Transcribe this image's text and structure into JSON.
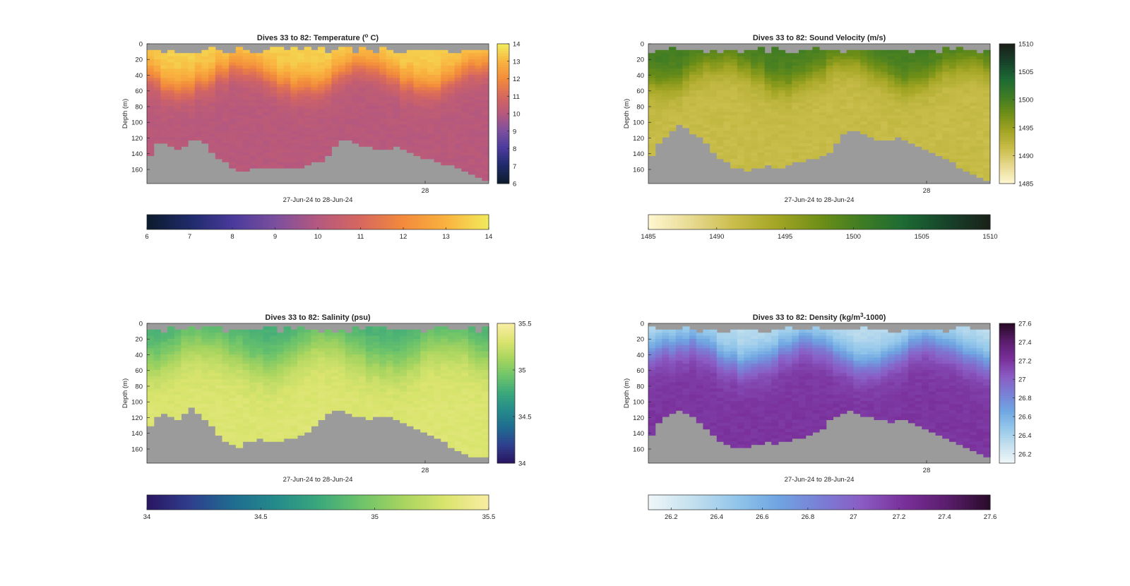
{
  "figure": {
    "background": "#ffffff",
    "missing_color": "#9b9b9b"
  },
  "chart_data": [
    {
      "type": "heatmap",
      "variable": "temperature",
      "title": "Dives 33 to 82: Temperature (",
      "title_sup": "o",
      "title_tail": " C)",
      "ylabel": "Depth (m)",
      "xlabel": "27-Jun-24 to 28-Jun-24",
      "x_ticks": [
        "28"
      ],
      "x_tick_fraction": 0.814,
      "y_ticks": [
        0,
        20,
        40,
        60,
        80,
        100,
        120,
        140,
        160
      ],
      "ylim": [
        0,
        178
      ],
      "y_reversed": true,
      "clim": [
        6,
        14
      ],
      "colorbar_ticks": [
        "6",
        "7",
        "8",
        "9",
        "10",
        "11",
        "12",
        "13",
        "14"
      ],
      "horizontal_colorbar_ticks": [
        "6",
        "7",
        "8",
        "9",
        "10",
        "11",
        "12",
        "13",
        "14"
      ],
      "colormap": [
        "#0d1b2e",
        "#1f2b6b",
        "#4a3a9c",
        "#7c4f9e",
        "#b5587f",
        "#d6675f",
        "#f28a3c",
        "#f9b13e",
        "#f2e85b"
      ],
      "dives": 50,
      "profile": {
        "surface": 13.6,
        "mixed_depth": 40,
        "thermocline": 30,
        "deep": 10.1,
        "variability": 0.25
      },
      "bottom_depths": [
        140,
        125,
        125,
        128,
        132,
        130,
        122,
        122,
        124,
        135,
        145,
        150,
        158,
        160,
        162,
        158,
        156,
        155,
        156,
        155,
        156,
        158,
        155,
        152,
        150,
        148,
        140,
        128,
        120,
        122,
        124,
        128,
        130,
        132,
        132,
        134,
        130,
        132,
        136,
        140,
        144,
        146,
        150,
        152,
        154,
        158,
        162,
        165,
        170,
        172
      ]
    },
    {
      "type": "heatmap",
      "variable": "sound_velocity",
      "title": "Dives 33 to 82: Sound Velocity (m/s)",
      "title_sup": "",
      "title_tail": "",
      "ylabel": "Depth (m)",
      "xlabel": "27-Jun-24 to 28-Jun-24",
      "x_ticks": [
        "28"
      ],
      "x_tick_fraction": 0.814,
      "y_ticks": [
        0,
        20,
        40,
        60,
        80,
        100,
        120,
        140,
        160
      ],
      "ylim": [
        0,
        178
      ],
      "y_reversed": true,
      "clim": [
        1485,
        1510
      ],
      "colorbar_ticks": [
        "1485",
        "1490",
        "1495",
        "1500",
        "1505",
        "1510"
      ],
      "horizontal_colorbar_ticks": [
        "1485",
        "1490",
        "1495",
        "1500",
        "1505",
        "1510"
      ],
      "colormap": [
        "#fdf6cf",
        "#e7d98f",
        "#c9bd4a",
        "#a3a524",
        "#6f8f17",
        "#3f7c24",
        "#1d6a34",
        "#17432a",
        "#1a2119"
      ],
      "dives": 50,
      "profile": {
        "surface": 1500.5,
        "mixed_depth": 35,
        "thermocline": 30,
        "deep": 1491.5,
        "variability": 0.9
      },
      "bottom_depths": [
        140,
        125,
        118,
        110,
        100,
        105,
        112,
        118,
        125,
        135,
        145,
        150,
        155,
        158,
        160,
        156,
        155,
        154,
        156,
        155,
        154,
        150,
        148,
        146,
        145,
        142,
        135,
        125,
        112,
        108,
        110,
        112,
        118,
        120,
        122,
        120,
        118,
        122,
        126,
        130,
        134,
        138,
        142,
        146,
        150,
        155,
        160,
        165,
        170,
        172
      ]
    },
    {
      "type": "heatmap",
      "variable": "salinity",
      "title": "Dives 33 to 82: Salinity (psu)",
      "title_sup": "",
      "title_tail": "",
      "ylabel": "Depth (m)",
      "xlabel": "27-Jun-24 to 28-Jun-24",
      "x_ticks": [
        "28"
      ],
      "x_tick_fraction": 0.814,
      "y_ticks": [
        0,
        20,
        40,
        60,
        80,
        100,
        120,
        140,
        160
      ],
      "ylim": [
        0,
        178
      ],
      "y_reversed": true,
      "clim": [
        34,
        35.5
      ],
      "colorbar_ticks": [
        "34",
        "34.5",
        "35",
        "35.5"
      ],
      "horizontal_colorbar_ticks": [
        "34",
        "34.5",
        "35",
        "35.5"
      ],
      "colormap": [
        "#2a1763",
        "#2f3f8e",
        "#1f6b90",
        "#258a8b",
        "#3aa77c",
        "#6cc36a",
        "#a6d45f",
        "#d9e46d",
        "#f7eda2"
      ],
      "dives": 50,
      "profile": {
        "surface": 34.78,
        "mixed_depth": 35,
        "thermocline": 45,
        "deep": 35.33,
        "variability": 0.05
      },
      "bottom_depths": [
        128,
        118,
        112,
        115,
        120,
        112,
        106,
        112,
        120,
        130,
        142,
        148,
        152,
        155,
        150,
        148,
        146,
        148,
        150,
        148,
        146,
        144,
        140,
        136,
        130,
        120,
        112,
        108,
        110,
        112,
        115,
        118,
        120,
        118,
        116,
        118,
        122,
        126,
        130,
        134,
        138,
        142,
        146,
        150,
        155,
        160,
        165,
        168,
        170,
        168
      ]
    },
    {
      "type": "heatmap",
      "variable": "density",
      "title": "Dives 33 to 82: Density (kg/m",
      "title_sup": "3",
      "title_tail": "-1000)",
      "ylabel": "Depth (m)",
      "xlabel": "27-Jun-24 to 28-Jun-24",
      "x_ticks": [
        "28"
      ],
      "x_tick_fraction": 0.814,
      "y_ticks": [
        0,
        20,
        40,
        60,
        80,
        100,
        120,
        140,
        160
      ],
      "ylim": [
        0,
        178
      ],
      "y_reversed": true,
      "clim": [
        26.1,
        27.6
      ],
      "colorbar_ticks": [
        "26.2",
        "26.4",
        "26.6",
        "26.8",
        "27",
        "27.2",
        "27.4",
        "27.6"
      ],
      "horizontal_colorbar_ticks": [
        "26.2",
        "26.4",
        "26.6",
        "26.8",
        "27",
        "27.2",
        "27.4",
        "27.6"
      ],
      "colormap": [
        "#eef6f8",
        "#c4e0ee",
        "#94c7ea",
        "#6fa6e2",
        "#7a7fd6",
        "#8a5cc4",
        "#7a2f9a",
        "#5b1e6e",
        "#2b0b2a"
      ],
      "dives": 50,
      "profile": {
        "surface": 26.3,
        "mixed_depth": 35,
        "thermocline": 35,
        "deep": 27.2,
        "variability": 0.05
      },
      "bottom_depths": [
        140,
        125,
        118,
        112,
        108,
        112,
        118,
        125,
        132,
        140,
        148,
        152,
        155,
        158,
        156,
        154,
        152,
        150,
        152,
        150,
        148,
        146,
        144,
        142,
        138,
        132,
        122,
        118,
        112,
        110,
        112,
        115,
        118,
        120,
        122,
        125,
        122,
        120,
        124,
        128,
        132,
        136,
        140,
        144,
        148,
        152,
        158,
        162,
        166,
        168
      ]
    }
  ]
}
